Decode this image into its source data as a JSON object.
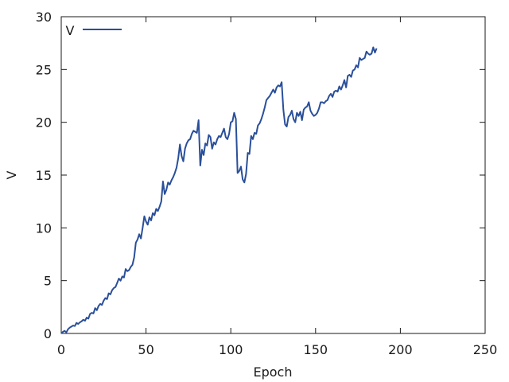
{
  "chart_data": {
    "type": "line",
    "title": "",
    "xlabel": "Epoch",
    "ylabel": "V",
    "xlim": [
      0,
      250
    ],
    "ylim": [
      0,
      30
    ],
    "xticks": [
      0,
      50,
      100,
      150,
      200,
      250
    ],
    "yticks": [
      0,
      5,
      10,
      15,
      20,
      25,
      30
    ],
    "grid": false,
    "legend_position": "top-left",
    "series": [
      {
        "name": "V",
        "color": "#2a4f9a",
        "points": [
          [
            0,
            0.0
          ],
          [
            1,
            0.15
          ],
          [
            2,
            0.25
          ],
          [
            3,
            0.1
          ],
          [
            4,
            0.4
          ],
          [
            5,
            0.55
          ],
          [
            6,
            0.65
          ],
          [
            7,
            0.75
          ],
          [
            8,
            0.7
          ],
          [
            9,
            1.0
          ],
          [
            10,
            0.9
          ],
          [
            11,
            1.05
          ],
          [
            12,
            1.15
          ],
          [
            13,
            1.3
          ],
          [
            14,
            1.2
          ],
          [
            15,
            1.5
          ],
          [
            16,
            1.4
          ],
          [
            17,
            1.85
          ],
          [
            18,
            1.95
          ],
          [
            19,
            1.9
          ],
          [
            20,
            2.4
          ],
          [
            21,
            2.2
          ],
          [
            22,
            2.6
          ],
          [
            23,
            2.8
          ],
          [
            24,
            2.7
          ],
          [
            25,
            3.1
          ],
          [
            26,
            3.35
          ],
          [
            27,
            3.25
          ],
          [
            28,
            3.8
          ],
          [
            29,
            3.7
          ],
          [
            30,
            4.1
          ],
          [
            31,
            4.3
          ],
          [
            32,
            4.4
          ],
          [
            33,
            4.8
          ],
          [
            34,
            5.2
          ],
          [
            35,
            5.0
          ],
          [
            36,
            5.4
          ],
          [
            37,
            5.3
          ],
          [
            38,
            6.1
          ],
          [
            39,
            5.9
          ],
          [
            40,
            6.0
          ],
          [
            41,
            6.3
          ],
          [
            42,
            6.5
          ],
          [
            43,
            7.2
          ],
          [
            44,
            8.6
          ],
          [
            45,
            8.9
          ],
          [
            46,
            9.4
          ],
          [
            47,
            9.0
          ],
          [
            48,
            10.0
          ],
          [
            49,
            11.1
          ],
          [
            50,
            10.6
          ],
          [
            51,
            10.3
          ],
          [
            52,
            11.0
          ],
          [
            53,
            10.7
          ],
          [
            54,
            11.4
          ],
          [
            55,
            11.2
          ],
          [
            56,
            11.8
          ],
          [
            57,
            11.6
          ],
          [
            58,
            12.0
          ],
          [
            59,
            12.5
          ],
          [
            60,
            14.4
          ],
          [
            61,
            13.2
          ],
          [
            62,
            13.6
          ],
          [
            63,
            14.3
          ],
          [
            64,
            14.1
          ],
          [
            65,
            14.5
          ],
          [
            66,
            14.8
          ],
          [
            67,
            15.2
          ],
          [
            68,
            15.7
          ],
          [
            69,
            16.6
          ],
          [
            70,
            17.9
          ],
          [
            71,
            16.8
          ],
          [
            72,
            16.3
          ],
          [
            73,
            17.5
          ],
          [
            74,
            18.0
          ],
          [
            75,
            18.3
          ],
          [
            76,
            18.4
          ],
          [
            77,
            18.9
          ],
          [
            78,
            19.2
          ],
          [
            79,
            19.1
          ],
          [
            80,
            19.0
          ],
          [
            81,
            20.2
          ],
          [
            82,
            15.9
          ],
          [
            83,
            17.4
          ],
          [
            84,
            16.9
          ],
          [
            85,
            18.0
          ],
          [
            86,
            17.8
          ],
          [
            87,
            18.8
          ],
          [
            88,
            18.6
          ],
          [
            89,
            17.5
          ],
          [
            90,
            18.1
          ],
          [
            91,
            17.9
          ],
          [
            92,
            18.4
          ],
          [
            93,
            18.7
          ],
          [
            94,
            18.6
          ],
          [
            95,
            19.0
          ],
          [
            96,
            19.4
          ],
          [
            97,
            18.6
          ],
          [
            98,
            18.4
          ],
          [
            99,
            18.9
          ],
          [
            100,
            20.0
          ],
          [
            101,
            20.1
          ],
          [
            102,
            20.9
          ],
          [
            103,
            20.3
          ],
          [
            104,
            15.2
          ],
          [
            105,
            15.4
          ],
          [
            106,
            15.8
          ],
          [
            107,
            14.6
          ],
          [
            108,
            14.3
          ],
          [
            109,
            15.1
          ],
          [
            110,
            17.1
          ],
          [
            111,
            17.0
          ],
          [
            112,
            18.7
          ],
          [
            113,
            18.4
          ],
          [
            114,
            19.0
          ],
          [
            115,
            18.9
          ],
          [
            116,
            19.7
          ],
          [
            117,
            19.9
          ],
          [
            118,
            20.3
          ],
          [
            119,
            20.8
          ],
          [
            120,
            21.4
          ],
          [
            121,
            22.1
          ],
          [
            122,
            22.3
          ],
          [
            123,
            22.5
          ],
          [
            124,
            22.8
          ],
          [
            125,
            23.1
          ],
          [
            126,
            22.8
          ],
          [
            127,
            23.3
          ],
          [
            128,
            23.5
          ],
          [
            129,
            23.4
          ],
          [
            130,
            23.8
          ],
          [
            131,
            21.2
          ],
          [
            132,
            19.8
          ],
          [
            133,
            19.6
          ],
          [
            134,
            20.5
          ],
          [
            135,
            20.7
          ],
          [
            136,
            21.1
          ],
          [
            137,
            20.3
          ],
          [
            138,
            20.0
          ],
          [
            139,
            20.9
          ],
          [
            140,
            20.6
          ],
          [
            141,
            21.0
          ],
          [
            142,
            20.2
          ],
          [
            143,
            21.2
          ],
          [
            144,
            21.4
          ],
          [
            145,
            21.5
          ],
          [
            146,
            21.9
          ],
          [
            147,
            21.1
          ],
          [
            148,
            20.8
          ],
          [
            149,
            20.6
          ],
          [
            150,
            20.7
          ],
          [
            151,
            20.9
          ],
          [
            152,
            21.3
          ],
          [
            153,
            21.9
          ],
          [
            154,
            21.9
          ],
          [
            155,
            21.8
          ],
          [
            156,
            22.0
          ],
          [
            157,
            22.1
          ],
          [
            158,
            22.5
          ],
          [
            159,
            22.7
          ],
          [
            160,
            22.4
          ],
          [
            161,
            22.9
          ],
          [
            162,
            23.0
          ],
          [
            163,
            22.9
          ],
          [
            164,
            23.4
          ],
          [
            165,
            23.1
          ],
          [
            166,
            23.5
          ],
          [
            167,
            24.0
          ],
          [
            168,
            23.3
          ],
          [
            169,
            24.4
          ],
          [
            170,
            24.5
          ],
          [
            171,
            24.3
          ],
          [
            172,
            24.9
          ],
          [
            173,
            25.0
          ],
          [
            174,
            25.4
          ],
          [
            175,
            25.2
          ],
          [
            176,
            26.1
          ],
          [
            177,
            25.9
          ],
          [
            178,
            26.0
          ],
          [
            179,
            26.1
          ],
          [
            180,
            26.7
          ],
          [
            181,
            26.5
          ],
          [
            182,
            26.4
          ],
          [
            183,
            26.5
          ],
          [
            184,
            27.1
          ],
          [
            185,
            26.6
          ],
          [
            186,
            27.0
          ]
        ]
      }
    ]
  }
}
